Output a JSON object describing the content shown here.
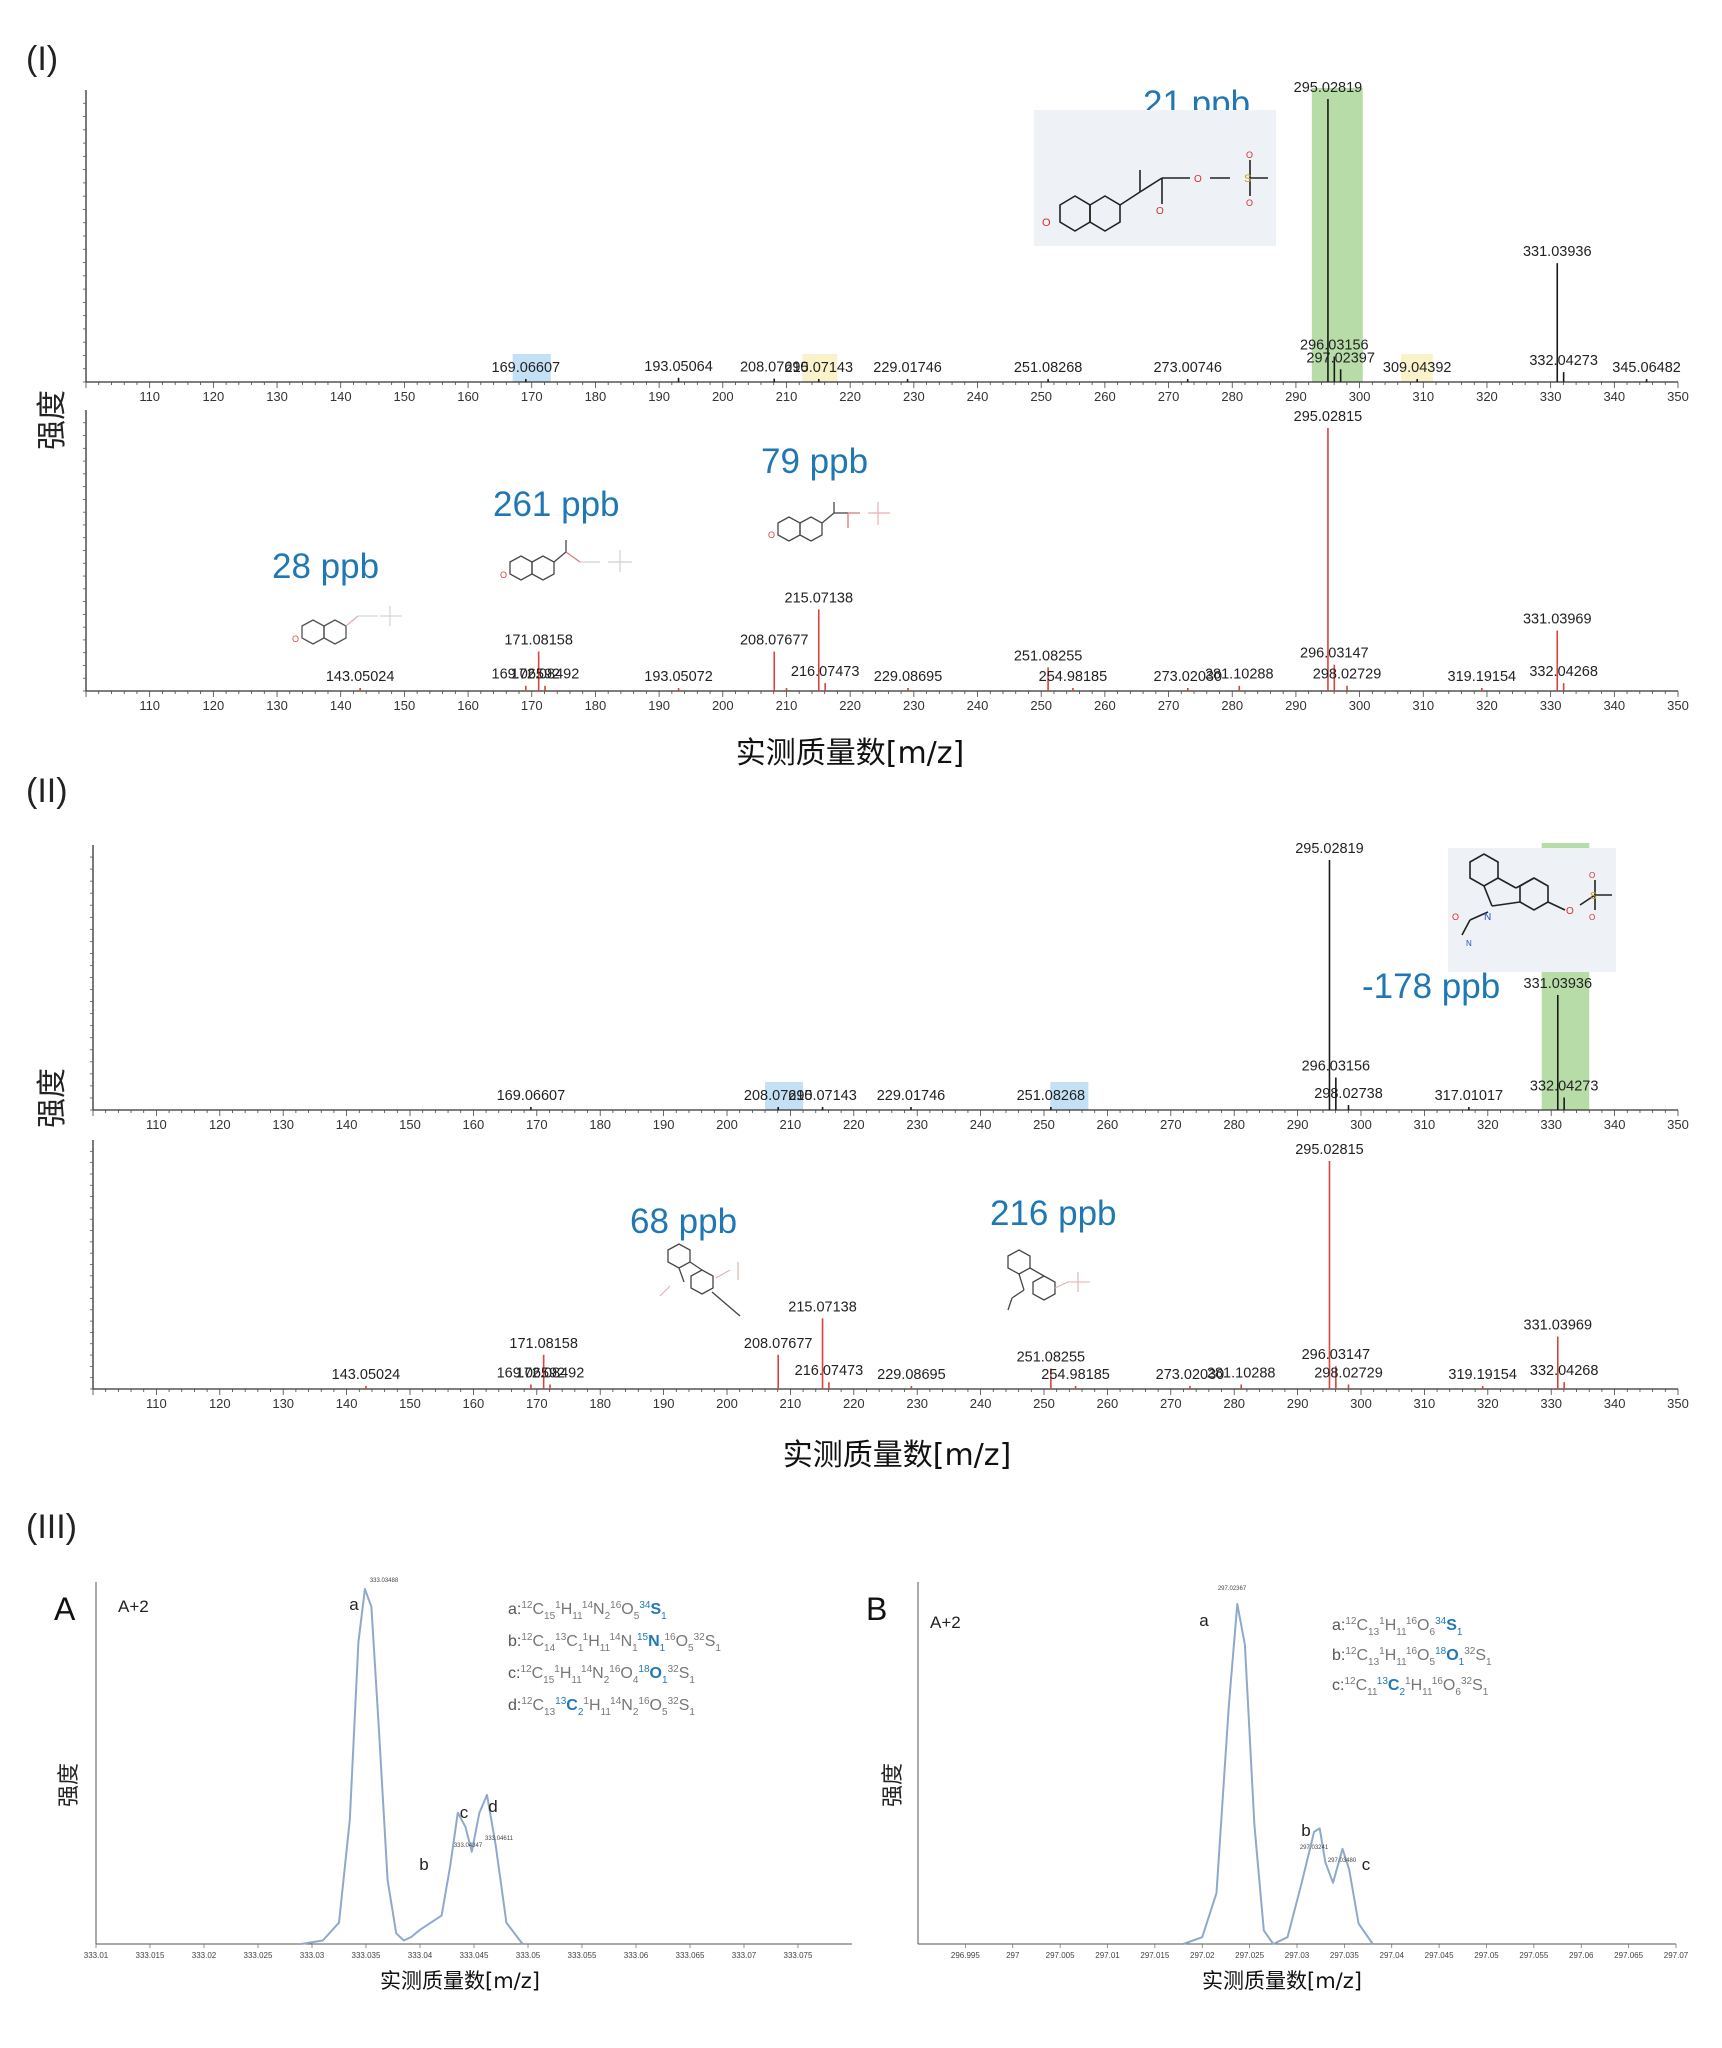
{
  "panel_labels": {
    "I": "(I)",
    "II": "(II)",
    "III": "(III)",
    "A": "A",
    "B": "B"
  },
  "y_label": "强度",
  "x_label": "实测质量数[m/z]",
  "ppb_labels": {
    "p1_top": "21 ppb",
    "p1_bot_a": "28 ppb",
    "p1_bot_b": "261 ppb",
    "p1_bot_c": "79 ppb",
    "p2_top": "-178 ppb",
    "p2_bot_a": "68 ppb",
    "p2_bot_b": "216 ppb"
  },
  "iso_A": {
    "tag": "A+2",
    "peak_letters": [
      "a",
      "b",
      "c",
      "d"
    ],
    "formulas": [
      {
        "prefix": "a:",
        "parts": [
          [
            "12",
            "C",
            ""
          ],
          [
            "",
            "",
            "15"
          ],
          [
            "1",
            "H",
            ""
          ],
          [
            "",
            "",
            "11"
          ],
          [
            "14",
            "N",
            ""
          ],
          [
            "",
            "",
            "2"
          ],
          [
            "16",
            "O",
            ""
          ],
          [
            "",
            "",
            "5"
          ],
          [
            "34",
            "S",
            "",
            "hl"
          ],
          [
            "",
            "",
            "1",
            "hl"
          ]
        ]
      },
      {
        "prefix": "b:",
        "parts": [
          [
            "12",
            "C",
            ""
          ],
          [
            "",
            "",
            "14"
          ],
          [
            "13",
            "C",
            ""
          ],
          [
            "",
            "",
            "1"
          ],
          [
            "1",
            "H",
            ""
          ],
          [
            "",
            "",
            "11"
          ],
          [
            "14",
            "N",
            ""
          ],
          [
            "",
            "",
            "1"
          ],
          [
            "15",
            "N",
            "",
            "hl"
          ],
          [
            "",
            "",
            "1",
            "hl"
          ],
          [
            "16",
            "O",
            ""
          ],
          [
            "",
            "",
            "5"
          ],
          [
            "32",
            "S",
            ""
          ],
          [
            "",
            "",
            "1"
          ]
        ]
      },
      {
        "prefix": "c:",
        "parts": [
          [
            "12",
            "C",
            ""
          ],
          [
            "",
            "",
            "15"
          ],
          [
            "1",
            "H",
            ""
          ],
          [
            "",
            "",
            "11"
          ],
          [
            "14",
            "N",
            ""
          ],
          [
            "",
            "",
            "2"
          ],
          [
            "16",
            "O",
            ""
          ],
          [
            "",
            "",
            "4"
          ],
          [
            "18",
            "O",
            "",
            "hl"
          ],
          [
            "",
            "",
            "1",
            "hl"
          ],
          [
            "32",
            "S",
            ""
          ],
          [
            "",
            "",
            "1"
          ]
        ]
      },
      {
        "prefix": "d:",
        "parts": [
          [
            "12",
            "C",
            ""
          ],
          [
            "",
            "",
            "13"
          ],
          [
            "13",
            "C",
            "",
            "hl"
          ],
          [
            "",
            "",
            "2",
            "hl"
          ],
          [
            "1",
            "H",
            ""
          ],
          [
            "",
            "",
            "11"
          ],
          [
            "14",
            "N",
            ""
          ],
          [
            "",
            "",
            "2"
          ],
          [
            "16",
            "O",
            ""
          ],
          [
            "",
            "",
            "5"
          ],
          [
            "32",
            "S",
            ""
          ],
          [
            "",
            "",
            "1"
          ]
        ]
      }
    ],
    "peak_value_labels": [
      "333.03488",
      "333.04347",
      "333.04611"
    ]
  },
  "iso_B": {
    "tag": "A+2",
    "peak_letters": [
      "a",
      "b",
      "c"
    ],
    "formulas": [
      {
        "prefix": "a:",
        "parts": [
          [
            "12",
            "C",
            ""
          ],
          [
            "",
            "",
            "13"
          ],
          [
            "1",
            "H",
            ""
          ],
          [
            "",
            "",
            "11"
          ],
          [
            "16",
            "O",
            ""
          ],
          [
            "",
            "",
            "6"
          ],
          [
            "34",
            "S",
            "",
            "hl"
          ],
          [
            "",
            "",
            "1",
            "hl"
          ]
        ]
      },
      {
        "prefix": "b:",
        "parts": [
          [
            "12",
            "C",
            ""
          ],
          [
            "",
            "",
            "13"
          ],
          [
            "1",
            "H",
            ""
          ],
          [
            "",
            "",
            "11"
          ],
          [
            "16",
            "O",
            ""
          ],
          [
            "",
            "",
            "5"
          ],
          [
            "18",
            "O",
            "",
            "hl"
          ],
          [
            "",
            "",
            "1",
            "hl"
          ],
          [
            "32",
            "S",
            ""
          ],
          [
            "",
            "",
            "1"
          ]
        ]
      },
      {
        "prefix": "c:",
        "parts": [
          [
            "12",
            "C",
            ""
          ],
          [
            "",
            "",
            "11"
          ],
          [
            "13",
            "C",
            "",
            "hl"
          ],
          [
            "",
            "",
            "2",
            "hl"
          ],
          [
            "1",
            "H",
            ""
          ],
          [
            "",
            "",
            "11"
          ],
          [
            "16",
            "O",
            ""
          ],
          [
            "",
            "",
            "6"
          ],
          [
            "32",
            "S",
            ""
          ],
          [
            "",
            "",
            "1"
          ]
        ]
      }
    ],
    "peak_value_labels": [
      "297.02367",
      "297.03241",
      "297.03480"
    ]
  },
  "colors": {
    "top_spectrum": "#1a1a1a",
    "bottom_spectrum": "#d8433b",
    "ppb_text": "#1f78b4",
    "green_highlight": "#9fd08a",
    "blue_highlight": "#a9d3f0",
    "yellow_highlight": "#f7ecb5",
    "iso_line": "#8fa9cc",
    "formula_gray": "#777777",
    "formula_hl": "#1f78b4"
  },
  "chart_data": [
    {
      "type": "bar",
      "id": "I_top",
      "xlim": [
        100,
        350
      ],
      "xticks": [
        110,
        120,
        130,
        140,
        150,
        160,
        170,
        180,
        190,
        200,
        210,
        220,
        230,
        240,
        250,
        260,
        270,
        280,
        290,
        300,
        310,
        320,
        330,
        340,
        350
      ],
      "peaks": [
        {
          "x": 169.06607,
          "y": 0.3,
          "label": "169.06607"
        },
        {
          "x": 193.05064,
          "y": 1.5,
          "label": "193.05064"
        },
        {
          "x": 208.0769,
          "y": 1.2,
          "label": "208.07690"
        },
        {
          "x": 215.07143,
          "y": 0.3,
          "label": "215.07143"
        },
        {
          "x": 229.01746,
          "y": 0.5,
          "label": "229.01746"
        },
        {
          "x": 251.08268,
          "y": 0.3,
          "label": "251.08268"
        },
        {
          "x": 273.00746,
          "y": 0.3,
          "label": "273.00746"
        },
        {
          "x": 295.02819,
          "y": 100,
          "label": "295.02819"
        },
        {
          "x": 296.03156,
          "y": 9,
          "label": "296.03156"
        },
        {
          "x": 297.02397,
          "y": 4.5,
          "label": "297.02397"
        },
        {
          "x": 309.04392,
          "y": 0.3,
          "label": "309.04392"
        },
        {
          "x": 331.03936,
          "y": 42,
          "label": "331.03936"
        },
        {
          "x": 332.04273,
          "y": 3.5,
          "label": "332.04273"
        },
        {
          "x": 345.06482,
          "y": 0.5,
          "label": "345.06482"
        }
      ],
      "highlights": [
        {
          "from": 292.5,
          "to": 300.5,
          "color": "green"
        },
        {
          "from": 167.0,
          "to": 173.0,
          "color": "blue"
        },
        {
          "from": 212.5,
          "to": 218.0,
          "color": "yellow"
        },
        {
          "from": 306.5,
          "to": 311.5,
          "color": "yellow"
        }
      ]
    },
    {
      "type": "bar",
      "id": "I_bottom",
      "xlim": [
        100,
        350
      ],
      "xticks": [
        110,
        120,
        130,
        140,
        150,
        160,
        170,
        180,
        190,
        200,
        210,
        220,
        230,
        240,
        250,
        260,
        270,
        280,
        290,
        300,
        310,
        320,
        330,
        340,
        350
      ],
      "peaks": [
        {
          "x": 143.05024,
          "y": 0.3,
          "label": "143.05024"
        },
        {
          "x": 169.06592,
          "y": 2,
          "label": "169.06592"
        },
        {
          "x": 171.08158,
          "y": 15,
          "label": "171.08158"
        },
        {
          "x": 172.08492,
          "y": 2,
          "label": "172.08492"
        },
        {
          "x": 193.05072,
          "y": 0.3,
          "label": "193.05072"
        },
        {
          "x": 208.07677,
          "y": 15,
          "label": "208.07677"
        },
        {
          "x": 210.0,
          "y": 1,
          "label": ""
        },
        {
          "x": 215.07138,
          "y": 31,
          "label": "215.07138"
        },
        {
          "x": 216.07473,
          "y": 3,
          "label": "216.07473"
        },
        {
          "x": 229.08695,
          "y": 0.3,
          "label": "229.08695"
        },
        {
          "x": 251.08255,
          "y": 9,
          "label": "251.08255"
        },
        {
          "x": 254.98185,
          "y": 0.3,
          "label": "254.98185"
        },
        {
          "x": 273.0203,
          "y": 0.3,
          "label": "273.02030"
        },
        {
          "x": 281.10288,
          "y": 2,
          "label": "281.10288"
        },
        {
          "x": 295.02815,
          "y": 100,
          "label": "295.02815"
        },
        {
          "x": 296.03147,
          "y": 10,
          "label": "296.03147"
        },
        {
          "x": 298.02729,
          "y": 2,
          "label": "298.02729"
        },
        {
          "x": 319.19154,
          "y": 0.3,
          "label": "319.19154"
        },
        {
          "x": 331.03969,
          "y": 23,
          "label": "331.03969"
        },
        {
          "x": 332.04268,
          "y": 3,
          "label": "332.04268"
        }
      ]
    },
    {
      "type": "bar",
      "id": "II_top",
      "xlim": [
        100,
        350
      ],
      "xticks": [
        110,
        120,
        130,
        140,
        150,
        160,
        170,
        180,
        190,
        200,
        210,
        220,
        230,
        240,
        250,
        260,
        270,
        280,
        290,
        300,
        310,
        320,
        330,
        340,
        350
      ],
      "peaks": [
        {
          "x": 169.06607,
          "y": 0.3,
          "label": "169.06607"
        },
        {
          "x": 208.0769,
          "y": 0.3,
          "label": "208.07690"
        },
        {
          "x": 215.07143,
          "y": 0.3,
          "label": "215.07143"
        },
        {
          "x": 229.01746,
          "y": 0.3,
          "label": "229.01746"
        },
        {
          "x": 251.08268,
          "y": 0.3,
          "label": "251.08268"
        },
        {
          "x": 295.02819,
          "y": 100,
          "label": "295.02819"
        },
        {
          "x": 296.03156,
          "y": 13,
          "label": "296.03156"
        },
        {
          "x": 298.02738,
          "y": 2,
          "label": "298.02738"
        },
        {
          "x": 317.01017,
          "y": 0.3,
          "label": "317.01017"
        },
        {
          "x": 331.03936,
          "y": 46,
          "label": "331.03936"
        },
        {
          "x": 332.04273,
          "y": 5,
          "label": "332.04273"
        }
      ],
      "highlights": [
        {
          "from": 328.5,
          "to": 336.0,
          "color": "green"
        },
        {
          "from": 206.0,
          "to": 212.0,
          "color": "blue"
        },
        {
          "from": 251.0,
          "to": 257.0,
          "color": "blue"
        }
      ]
    },
    {
      "type": "bar",
      "id": "II_bottom",
      "xlim": [
        100,
        350
      ],
      "xticks": [
        110,
        120,
        130,
        140,
        150,
        160,
        170,
        180,
        190,
        200,
        210,
        220,
        230,
        240,
        250,
        260,
        270,
        280,
        290,
        300,
        310,
        320,
        330,
        340,
        350
      ],
      "peaks": [
        {
          "x": 143.05024,
          "y": 0.3,
          "label": "143.05024"
        },
        {
          "x": 169.06592,
          "y": 2,
          "label": "169.06592"
        },
        {
          "x": 171.08158,
          "y": 15,
          "label": "171.08158"
        },
        {
          "x": 172.08492,
          "y": 2,
          "label": "172.08492"
        },
        {
          "x": 208.07677,
          "y": 15,
          "label": "208.07677"
        },
        {
          "x": 215.07138,
          "y": 31,
          "label": "215.07138"
        },
        {
          "x": 216.07473,
          "y": 3,
          "label": "216.07473"
        },
        {
          "x": 229.08695,
          "y": 0.3,
          "label": "229.08695"
        },
        {
          "x": 251.08255,
          "y": 9,
          "label": "251.08255"
        },
        {
          "x": 254.98185,
          "y": 0.3,
          "label": "254.98185"
        },
        {
          "x": 273.0203,
          "y": 0.3,
          "label": "273.02030"
        },
        {
          "x": 281.10288,
          "y": 2,
          "label": "281.10288"
        },
        {
          "x": 295.02815,
          "y": 100,
          "label": "295.02815"
        },
        {
          "x": 296.03147,
          "y": 10,
          "label": "296.03147"
        },
        {
          "x": 298.02729,
          "y": 2,
          "label": "298.02729"
        },
        {
          "x": 319.19154,
          "y": 0.3,
          "label": "319.19154"
        },
        {
          "x": 331.03969,
          "y": 23,
          "label": "331.03969"
        },
        {
          "x": 332.04268,
          "y": 3,
          "label": "332.04268"
        }
      ]
    },
    {
      "type": "line",
      "id": "III_A",
      "xlim": [
        333.01,
        333.08
      ],
      "xticks": [
        "333.01",
        "333.015",
        "333.02",
        "333.025",
        "333.03",
        "333.035",
        "333.04",
        "333.045",
        "333.05",
        "333.055",
        "333.06",
        "333.065",
        "333.07",
        "333.075"
      ],
      "x": [
        333.029,
        333.031,
        333.0325,
        333.0335,
        333.0343,
        333.0349,
        333.0355,
        333.0362,
        333.037,
        333.0378,
        333.0385,
        333.0392,
        333.04,
        333.041,
        333.042,
        333.0428,
        333.0435,
        333.0442,
        333.0448,
        333.0455,
        333.0462,
        333.047,
        333.048,
        333.0495
      ],
      "y": [
        0,
        0.01,
        0.06,
        0.35,
        0.85,
        1.0,
        0.95,
        0.6,
        0.18,
        0.03,
        0.01,
        0.02,
        0.04,
        0.06,
        0.08,
        0.22,
        0.37,
        0.33,
        0.26,
        0.37,
        0.42,
        0.28,
        0.06,
        0
      ]
    },
    {
      "type": "line",
      "id": "III_B",
      "xlim": [
        296.99,
        297.07
      ],
      "xticks": [
        "296.995",
        "297",
        "297.005",
        "297.01",
        "297.015",
        "297.02",
        "297.025",
        "297.03",
        "297.035",
        "297.04",
        "297.045",
        "297.05",
        "297.055",
        "297.06",
        "297.065",
        "297.07"
      ],
      "x": [
        297.018,
        297.02,
        297.0215,
        297.0228,
        297.0237,
        297.0245,
        297.0255,
        297.0265,
        297.0275,
        297.029,
        297.0305,
        297.0318,
        297.0324,
        297.033,
        297.0338,
        297.0348,
        297.0355,
        297.0365,
        297.038
      ],
      "y": [
        0,
        0.02,
        0.15,
        0.7,
        1.0,
        0.88,
        0.35,
        0.04,
        0,
        0.02,
        0.18,
        0.33,
        0.34,
        0.24,
        0.18,
        0.28,
        0.22,
        0.06,
        0
      ]
    }
  ]
}
